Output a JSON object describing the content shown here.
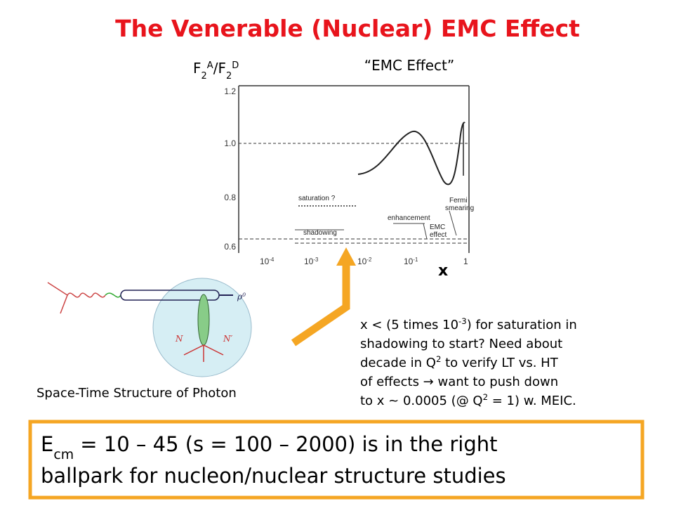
{
  "title": "The Venerable (Nuclear) EMC Effect",
  "plot": {
    "y_label": [
      {
        "text": "F"
      },
      {
        "text": "2",
        "script": "sub"
      },
      {
        "text": "A",
        "script": "sup"
      },
      {
        "text": "/F"
      },
      {
        "text": "2",
        "script": "sub"
      },
      {
        "text": "D",
        "script": "sup"
      }
    ],
    "caption": "“EMC Effect”",
    "y_ticks": [
      "1.2",
      "1.0",
      "0.8",
      "0.6"
    ],
    "x_ticks": [
      [
        {
          "text": "10"
        },
        {
          "text": "-4",
          "script": "sup"
        }
      ],
      [
        {
          "text": "10"
        },
        {
          "text": "-3",
          "script": "sup"
        }
      ],
      [
        {
          "text": "10"
        },
        {
          "text": "-2",
          "script": "sup"
        }
      ],
      [
        {
          "text": "10"
        },
        {
          "text": "-1",
          "script": "sup"
        }
      ],
      [
        {
          "text": "1"
        }
      ]
    ],
    "x_label": "x",
    "annotations": {
      "saturation": "saturation ?",
      "shadowing": "shadowing",
      "enhancement": "enhancement",
      "emc": [
        "EMC",
        "effect"
      ],
      "fermi": [
        "Fermi",
        "smearing"
      ]
    }
  },
  "diagram": {
    "caption": "Space-Time Structure of Photon",
    "nucleon_left": "N",
    "nucleon_right": "N′",
    "meson": [
      {
        "text": "ρ"
      },
      {
        "text": "0",
        "script": "sup"
      }
    ]
  },
  "note": [
    [
      {
        "text": "x < (5 times 10"
      },
      {
        "text": "-3",
        "script": "sup"
      },
      {
        "text": ") for saturation in"
      }
    ],
    [
      {
        "text": "shadowing to start? Need about"
      }
    ],
    [
      {
        "text": "decade in Q"
      },
      {
        "text": "2",
        "script": "sup"
      },
      {
        "text": " to verify LT vs. HT"
      }
    ],
    [
      {
        "text": "of effects  → want to push down"
      }
    ],
    [
      {
        "text": "to x ~ 0.0005 (@ Q"
      },
      {
        "text": "2",
        "script": "sup"
      },
      {
        "text": " = 1) w. MEIC."
      }
    ]
  ],
  "summary": [
    [
      {
        "text": "E"
      },
      {
        "text": "cm",
        "script": "sub"
      },
      {
        "text": " = 10 – 45 (s = 100 – 2000) is in the right"
      }
    ],
    [
      {
        "text": "ballpark for nucleon/nuclear structure studies"
      }
    ]
  ]
}
